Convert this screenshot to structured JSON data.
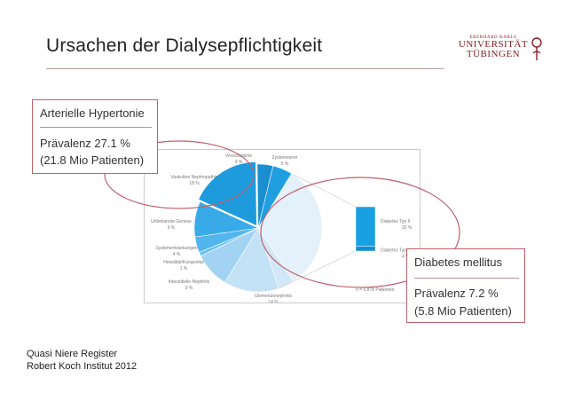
{
  "slide": {
    "title": "Ursachen der Dialysepflichtigkeit",
    "logo": {
      "line1": "EBERHARD KARLS",
      "line2": "UNIVERSITÄT",
      "line3": "TÜBINGEN"
    }
  },
  "hypertension_box": {
    "heading": "Arterielle Hypertonie",
    "prevalence": "Prävalenz 27.1 %",
    "patients": "(21.8 Mio Patienten)"
  },
  "diabetes_box": {
    "heading": "Diabetes mellitus",
    "prevalence": "Prävalenz 7.2 %",
    "patients": "(5.8 Mio Patienten)"
  },
  "chart_data": {
    "type": "pie",
    "title": "",
    "labels": [
      "Diabetes Typ II",
      "Diabetes Typ I",
      "Glomerulonephritis",
      "Interstitielle Nephritis",
      "Hereditär/Kongenital",
      "Systemerkrankungen",
      "Unbekannte Genese",
      "Vaskuläre Nephropathie",
      "Verschiedene",
      "Zystennieren"
    ],
    "values": [
      32,
      4,
      14,
      9,
      1,
      4,
      9,
      18,
      4,
      5
    ],
    "value_labels": [
      "32 %",
      "4 %",
      "14 %",
      "9 %",
      "1 %",
      "4 %",
      "9 %",
      "18 %",
      "4 %",
      "5 %"
    ],
    "annotation": "n = 5.878 Patienten",
    "colors": [
      "#e4f1fb",
      "#d2e8f8",
      "#c4e2f6",
      "#a3d3f2",
      "#6ec1ee",
      "#52b5ec",
      "#38aae8",
      "#1d9bdd",
      "#1b8ed0",
      "#209fe0"
    ]
  },
  "footer": {
    "line1": "Quasi Niere Register",
    "line2": "Robert Koch Institut 2012"
  }
}
